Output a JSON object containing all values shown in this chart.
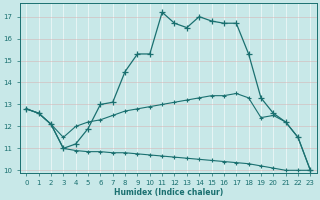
{
  "xlabel": "Humidex (Indice chaleur)",
  "bg_color": "#c8e8e8",
  "grid_color": "#b0d4d4",
  "line_color": "#1a7070",
  "xlim": [
    -0.5,
    23.5
  ],
  "ylim": [
    9.9,
    17.6
  ],
  "yticks": [
    10,
    11,
    12,
    13,
    14,
    15,
    16,
    17
  ],
  "xticks": [
    0,
    1,
    2,
    3,
    4,
    5,
    6,
    7,
    8,
    9,
    10,
    11,
    12,
    13,
    14,
    15,
    16,
    17,
    18,
    19,
    20,
    21,
    22,
    23
  ],
  "line1_x": [
    0,
    1,
    2,
    3,
    4,
    5,
    6,
    7,
    8,
    9,
    10,
    11,
    12,
    13,
    14,
    15,
    16,
    17,
    18,
    19,
    20,
    21,
    22,
    23
  ],
  "line1_y": [
    12.8,
    12.6,
    12.1,
    11.0,
    11.2,
    11.9,
    13.0,
    13.1,
    14.5,
    15.3,
    15.3,
    17.2,
    16.7,
    16.5,
    17.0,
    16.8,
    16.7,
    16.7,
    15.3,
    13.3,
    12.6,
    12.2,
    11.5,
    10.0
  ],
  "line2_x": [
    0,
    1,
    2,
    3,
    4,
    5,
    6,
    7,
    8,
    9,
    10,
    11,
    12,
    13,
    14,
    15,
    16,
    17,
    18,
    19,
    20,
    21,
    22,
    23
  ],
  "line2_y": [
    12.8,
    12.6,
    12.1,
    11.5,
    12.0,
    12.2,
    12.3,
    12.5,
    12.7,
    12.8,
    12.9,
    13.0,
    13.1,
    13.2,
    13.3,
    13.4,
    13.4,
    13.5,
    13.3,
    12.4,
    12.5,
    12.2,
    11.5,
    10.0
  ],
  "line3_x": [
    0,
    1,
    2,
    3,
    4,
    5,
    6,
    7,
    8,
    9,
    10,
    11,
    12,
    13,
    14,
    15,
    16,
    17,
    18,
    19,
    20,
    21,
    22,
    23
  ],
  "line3_y": [
    12.8,
    12.6,
    12.1,
    11.0,
    10.9,
    10.85,
    10.85,
    10.8,
    10.8,
    10.75,
    10.7,
    10.65,
    10.6,
    10.55,
    10.5,
    10.45,
    10.4,
    10.35,
    10.3,
    10.2,
    10.1,
    10.0,
    10.0,
    10.0
  ]
}
